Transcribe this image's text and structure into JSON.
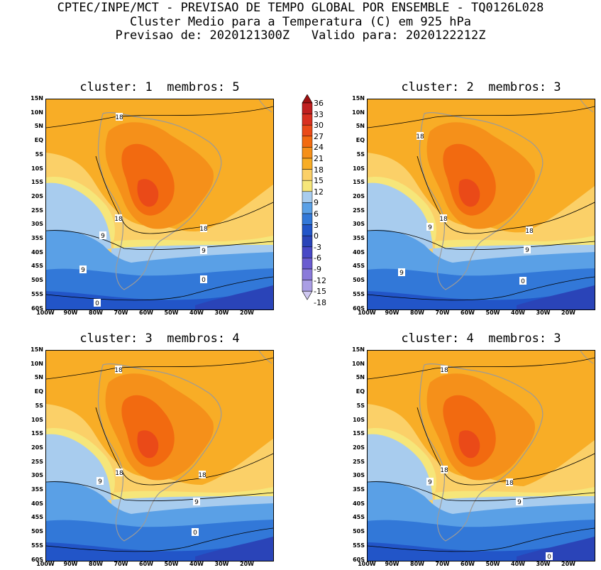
{
  "header": {
    "line1": "CPTEC/INPE/MCT - PREVISAO DE TEMPO GLOBAL POR ENSEMBLE - TQ0126L028",
    "line2": "Cluster Medio para a Temperatura (C) em 925 hPa",
    "line3": "Previsao de: 2020121300Z   Valido para: 2020122212Z"
  },
  "panels": [
    {
      "title": "cluster: 1  membros: 5"
    },
    {
      "title": "cluster: 2  membros: 3"
    },
    {
      "title": "cluster: 3  membros: 4"
    },
    {
      "title": "cluster: 4  membros: 3"
    }
  ],
  "axes": {
    "lat_labels": [
      "15N",
      "10N",
      "5N",
      "EQ",
      "5S",
      "10S",
      "15S",
      "20S",
      "25S",
      "30S",
      "35S",
      "40S",
      "45S",
      "50S",
      "55S",
      "60S"
    ],
    "lon_labels": [
      "100W",
      "90W",
      "80W",
      "70W",
      "60W",
      "50W",
      "40W",
      "30W",
      "20W"
    ]
  },
  "contour_labels": {
    "c18": "18",
    "c9": "9",
    "c0": "0"
  },
  "colorbar": {
    "levels": [
      "36",
      "33",
      "30",
      "27",
      "24",
      "21",
      "18",
      "15",
      "12",
      "9",
      "6",
      "3",
      "0",
      "-3",
      "-6",
      "-9",
      "-12",
      "-15",
      "-18"
    ],
    "colors": [
      "#9e1010",
      "#c02020",
      "#d83020",
      "#ea4a18",
      "#f26a10",
      "#f5901a",
      "#f8ad26",
      "#fbd068",
      "#f6e67a",
      "#a8ccee",
      "#5aa0e6",
      "#3278d8",
      "#2255c8",
      "#2a44b8",
      "#4848c6",
      "#6a5cd0",
      "#8a7ada",
      "#aa9ee4",
      "#cfc8f0"
    ]
  }
}
